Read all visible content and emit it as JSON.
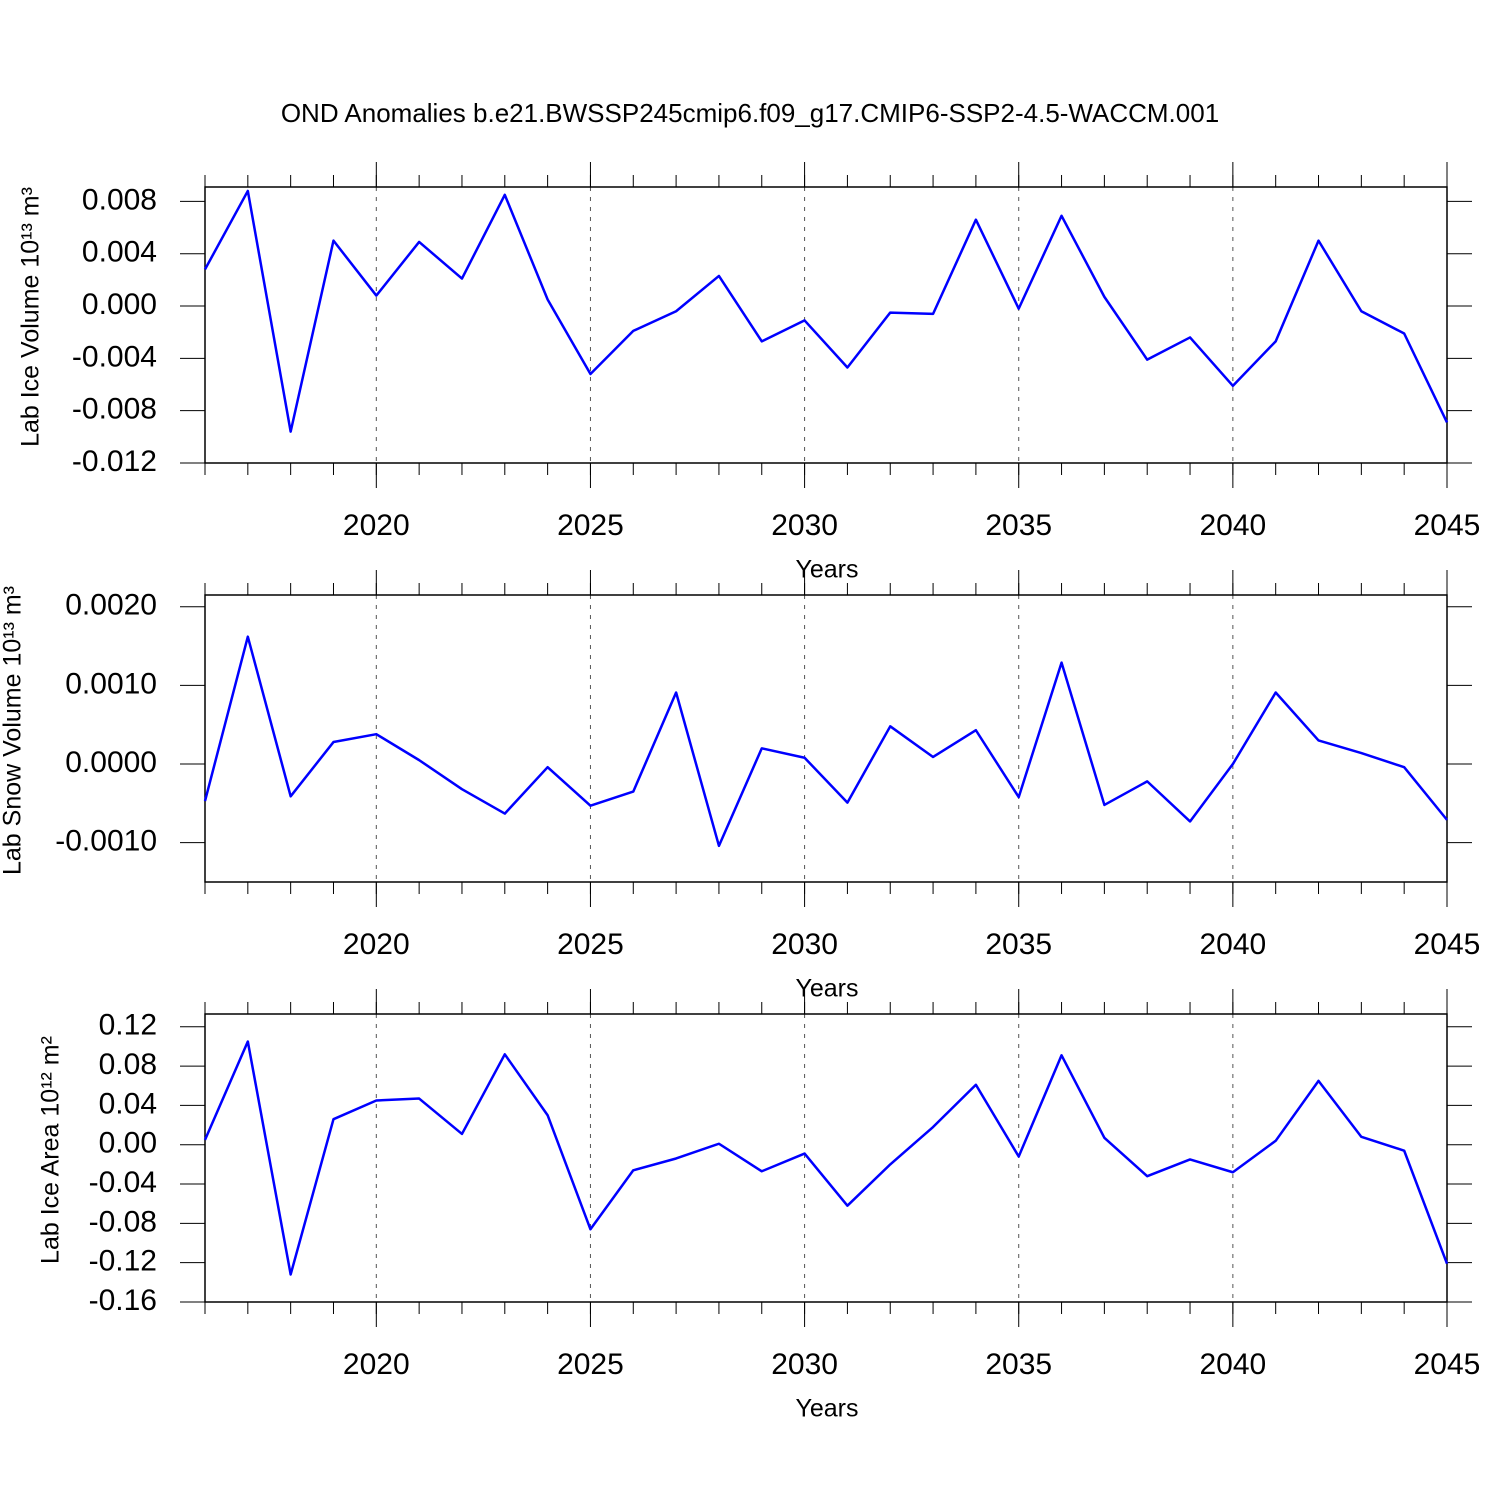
{
  "chart_data": [
    {
      "type": "line",
      "title": "OND Anomalies b.e21.BWSSP245cmip6.f09_g17.CMIP6-SSP2-4.5-WACCM.001",
      "ylabel": "Lab Ice Volume 10¹³ m³",
      "xlabel": "Years",
      "x": [
        2016,
        2017,
        2018,
        2019,
        2020,
        2021,
        2022,
        2023,
        2024,
        2025,
        2026,
        2027,
        2028,
        2029,
        2030,
        2031,
        2032,
        2033,
        2034,
        2035,
        2036,
        2037,
        2038,
        2039,
        2040,
        2041,
        2042,
        2043,
        2044,
        2045
      ],
      "series": [
        {
          "color": "#0000ff",
          "values": [
            0.0028,
            0.0088,
            -0.0096,
            0.005,
            0.0008,
            0.0049,
            0.0021,
            0.0085,
            0.0005,
            -0.0052,
            -0.0019,
            -0.0004,
            0.0023,
            -0.0027,
            -0.0011,
            -0.0047,
            -0.0005,
            -0.0006,
            0.0066,
            -0.0002,
            0.0069,
            0.0007,
            -0.0041,
            -0.0024,
            -0.0061,
            -0.0027,
            0.005,
            -0.0004,
            -0.0021,
            -0.0089
          ]
        }
      ],
      "xlim": [
        2016,
        2045
      ],
      "xticks": [
        2020,
        2025,
        2030,
        2035,
        2040,
        2045
      ],
      "ylim": [
        -0.012,
        0.0091
      ],
      "yticks": [
        -0.012,
        -0.008,
        -0.004,
        {
          "value": 0,
          "label": "0.000"
        },
        0.004,
        0.008
      ],
      "grid": true
    },
    {
      "type": "line",
      "ylabel": "Lab Snow Volume 10¹³ m³",
      "xlabel": "Years",
      "x": [
        2016,
        2017,
        2018,
        2019,
        2020,
        2021,
        2022,
        2023,
        2024,
        2025,
        2026,
        2027,
        2028,
        2029,
        2030,
        2031,
        2032,
        2033,
        2034,
        2035,
        2036,
        2037,
        2038,
        2039,
        2040,
        2041,
        2042,
        2043,
        2044,
        2045
      ],
      "series": [
        {
          "color": "#0000ff",
          "values": [
            -0.00047,
            0.00162,
            -0.00041,
            0.00028,
            0.00038,
            5e-05,
            -0.00032,
            -0.00063,
            -4e-05,
            -0.00053,
            -0.00035,
            0.00091,
            -0.00104,
            0.0002,
            8e-05,
            -0.00049,
            0.00048,
            9e-05,
            0.00043,
            -0.00042,
            0.00129,
            -0.00052,
            -0.00022,
            -0.00073,
            0,
            0.00091,
            0.0003,
            0.00014,
            -4e-05,
            -0.00071
          ]
        }
      ],
      "xlim": [
        2016,
        2045
      ],
      "xticks": [
        2020,
        2025,
        2030,
        2035,
        2040,
        2045
      ],
      "ylim": [
        -0.0015,
        0.00215
      ],
      "yticks": [
        {
          "value": -0.001,
          "label": "-0.0010"
        },
        {
          "value": 0,
          "label": "0.0000"
        },
        {
          "value": 0.001,
          "label": "0.0010"
        },
        {
          "value": 0.002,
          "label": "0.0020"
        }
      ],
      "grid": true
    },
    {
      "type": "line",
      "ylabel": "Lab Ice Area 10¹² m²",
      "xlabel": "Years",
      "x": [
        2016,
        2017,
        2018,
        2019,
        2020,
        2021,
        2022,
        2023,
        2024,
        2025,
        2026,
        2027,
        2028,
        2029,
        2030,
        2031,
        2032,
        2033,
        2034,
        2035,
        2036,
        2037,
        2038,
        2039,
        2040,
        2041,
        2042,
        2043,
        2044,
        2045
      ],
      "series": [
        {
          "color": "#0000ff",
          "values": [
            0.005,
            0.105,
            -0.132,
            0.026,
            0.045,
            0.047,
            0.011,
            0.092,
            0.03,
            -0.086,
            -0.026,
            -0.014,
            0.001,
            -0.027,
            -0.009,
            -0.062,
            -0.02,
            0.018,
            0.061,
            -0.012,
            0.091,
            0.007,
            -0.032,
            -0.015,
            -0.028,
            0.004,
            0.065,
            0.008,
            -0.006,
            -0.121
          ]
        }
      ],
      "xlim": [
        2016,
        2045
      ],
      "xticks": [
        2020,
        2025,
        2030,
        2035,
        2040,
        2045
      ],
      "ylim": [
        -0.16,
        0.133
      ],
      "yticks": [
        -0.16,
        -0.12,
        -0.08,
        -0.04,
        {
          "value": 0,
          "label": "0.00"
        },
        0.04,
        0.08,
        0.12
      ],
      "grid": true
    }
  ]
}
